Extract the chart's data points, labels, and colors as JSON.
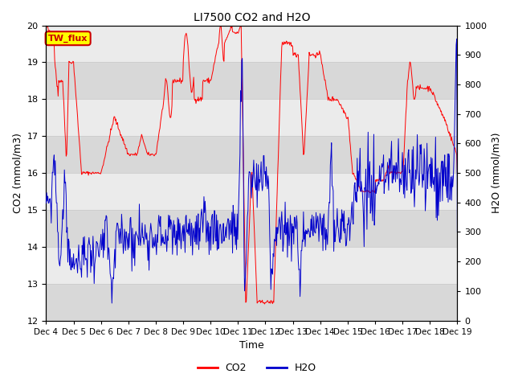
{
  "title": "LI7500 CO2 and H2O",
  "xlabel": "Time",
  "ylabel_left": "CO2 (mmol/m3)",
  "ylabel_right": "H2O (mmol/m3)",
  "ylim_left": [
    12.0,
    20.0
  ],
  "ylim_right": [
    0,
    1000
  ],
  "yticks_left": [
    12.0,
    13.0,
    14.0,
    15.0,
    16.0,
    17.0,
    18.0,
    19.0,
    20.0
  ],
  "yticks_right": [
    0,
    100,
    200,
    300,
    400,
    500,
    600,
    700,
    800,
    900,
    1000
  ],
  "xtick_labels": [
    "Dec 4",
    "Dec 5",
    "Dec 6",
    "Dec 7",
    "Dec 8",
    "Dec 9",
    "Dec 10",
    "Dec 11",
    "Dec 12",
    "Dec 13",
    "Dec 14",
    "Dec 15",
    "Dec 16",
    "Dec 17",
    "Dec 18",
    "Dec 19"
  ],
  "color_co2": "#ff0000",
  "color_h2o": "#0000cc",
  "annotation_text": "TW_flux",
  "annotation_color": "#cc0000",
  "annotation_bg": "#ffff00",
  "grid_color": "#cccccc",
  "bg_color": "#ebebeb",
  "bg_color2": "#d8d8d8",
  "legend_co2": "CO2",
  "legend_h2o": "H2O",
  "figsize": [
    6.4,
    4.8
  ],
  "dpi": 100
}
